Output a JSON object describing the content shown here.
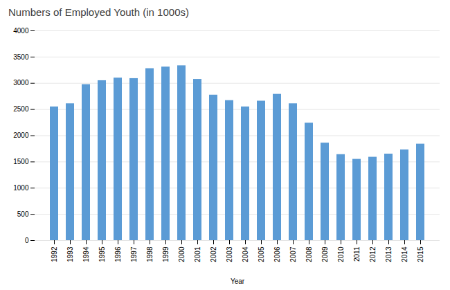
{
  "chart_data": {
    "type": "bar",
    "title": "Numbers of Employed Youth (in 1000s)",
    "xlabel": "Year",
    "categories": [
      "1992",
      "1993",
      "1994",
      "1995",
      "1996",
      "1997",
      "1998",
      "1999",
      "2000",
      "2001",
      "2002",
      "2003",
      "2004",
      "2005",
      "2006",
      "2007",
      "2008",
      "2009",
      "2010",
      "2011",
      "2012",
      "2013",
      "2014",
      "2015"
    ],
    "values": [
      2550,
      2610,
      2975,
      3050,
      3100,
      3090,
      3280,
      3310,
      3335,
      3075,
      2775,
      2670,
      2550,
      2660,
      2790,
      2610,
      2240,
      1860,
      1640,
      1550,
      1590,
      1650,
      1730,
      1840
    ],
    "color": "#5B9BD5",
    "ylim": [
      0,
      4000
    ],
    "yticks": [
      0,
      500,
      1000,
      1500,
      2000,
      2500,
      3000,
      3500,
      4000
    ],
    "grid": true
  }
}
